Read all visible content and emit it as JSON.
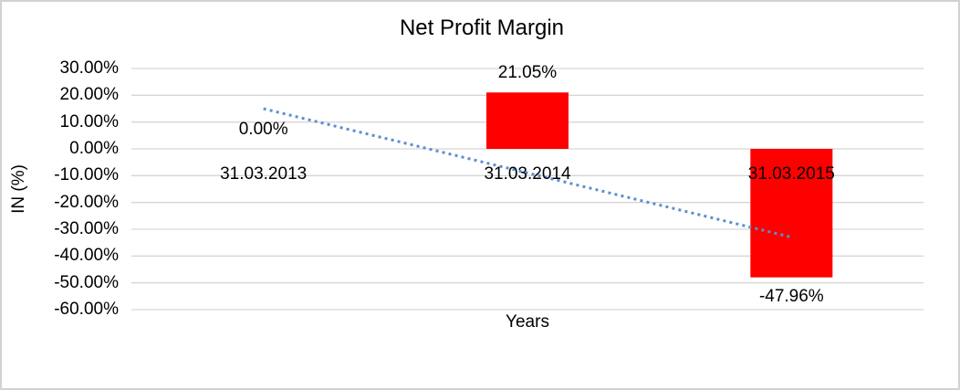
{
  "chart_data": {
    "type": "bar",
    "title": "Net Profit Margin",
    "xlabel": "Years",
    "ylabel": "IN (%)",
    "categories": [
      "31.03.2013",
      "31.03.2014",
      "31.03.2015"
    ],
    "values": [
      0.0,
      21.05,
      -47.96
    ],
    "data_labels": [
      "0.00%",
      "21.05%",
      "-47.96%"
    ],
    "ylim": [
      -60,
      30
    ],
    "ytick_step": 10,
    "ytick_labels": [
      "30.00%",
      "20.00%",
      "10.00%",
      "0.00%",
      "-10.00%",
      "-20.00%",
      "-30.00%",
      "-40.00%",
      "-50.00%",
      "-60.00%"
    ],
    "grid": true,
    "legend": "none",
    "bar_color": "#ff0000",
    "gridline_color": "#d6d6d6",
    "text_color": "#000000",
    "trendline": {
      "type": "linear",
      "style": "dotted",
      "color": "#5b8fd1",
      "start_value_pct": 15.0,
      "end_value_pct": -32.95
    }
  }
}
